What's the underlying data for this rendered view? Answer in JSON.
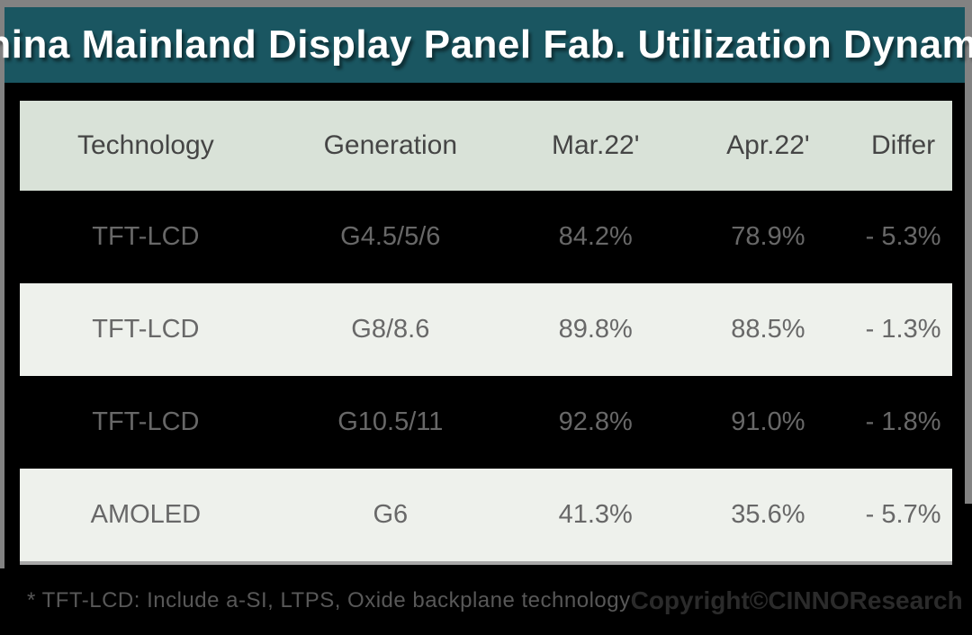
{
  "title": "China Mainland Display Panel Fab. Utilization Dynamic",
  "colors": {
    "banner_teal": "#1A5661",
    "header_bg": "#D9E2D8",
    "light_row_bg": "#EEF1EC",
    "dark_row_bg": "#000000",
    "row_text": "#686868",
    "header_text": "#454545",
    "frame_gray": "#828282",
    "note_text": "#585858",
    "copyright_text": "#2B2B2B"
  },
  "table": {
    "columns": [
      "Technology",
      "Generation",
      "Mar.22'",
      "Apr.22'",
      "Differ"
    ],
    "rows": [
      {
        "technology": "TFT-LCD",
        "generation": "G4.5/5/6",
        "mar22": "84.2%",
        "apr22": "78.9%",
        "differ": "- 5.3%"
      },
      {
        "technology": "TFT-LCD",
        "generation": "G8/8.6",
        "mar22": "89.8%",
        "apr22": "88.5%",
        "differ": "- 1.3%"
      },
      {
        "technology": "TFT-LCD",
        "generation": "G10.5/11",
        "mar22": "92.8%",
        "apr22": "91.0%",
        "differ": "- 1.8%"
      },
      {
        "technology": "AMOLED",
        "generation": "G6",
        "mar22": "41.3%",
        "apr22": "35.6%",
        "differ": "- 5.7%"
      }
    ]
  },
  "footer": {
    "note": "* TFT-LCD: Include a-SI, LTPS, Oxide backplane technology",
    "copyright": "Copyright©CINNOResearch"
  },
  "chart_data": {
    "type": "table",
    "title": "China Mainland Display Panel Fab. Utilization Dynamic",
    "columns": [
      "Technology",
      "Generation",
      "Mar.22'",
      "Apr.22'",
      "Differ"
    ],
    "rows": [
      [
        "TFT-LCD",
        "G4.5/5/6",
        84.2,
        78.9,
        -5.3
      ],
      [
        "TFT-LCD",
        "G8/8.6",
        89.8,
        88.5,
        -1.3
      ],
      [
        "TFT-LCD",
        "G10.5/11",
        92.8,
        91.0,
        -1.8
      ],
      [
        "AMOLED",
        "G6",
        41.3,
        35.6,
        -5.7
      ]
    ],
    "units": "percent utilization",
    "footnote": "* TFT-LCD: Include a-SI, LTPS, Oxide backplane technology",
    "source": "Copyright©CINNOResearch"
  }
}
